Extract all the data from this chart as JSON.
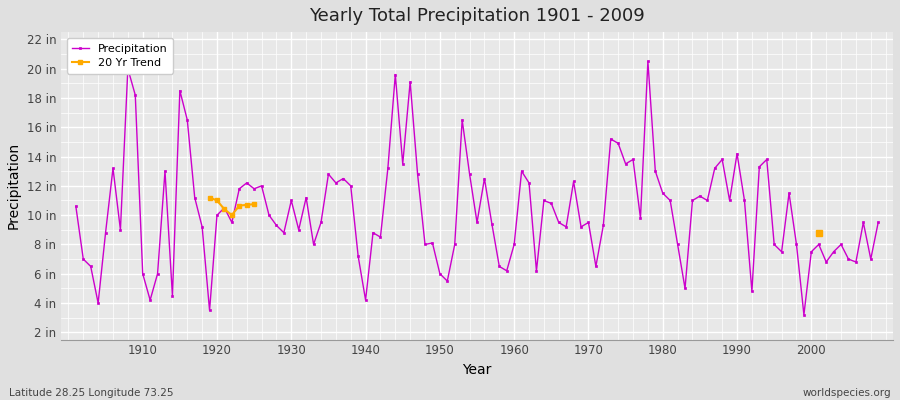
{
  "title": "Yearly Total Precipitation 1901 - 2009",
  "xlabel": "Year",
  "ylabel": "Precipitation",
  "footnote_left": "Latitude 28.25 Longitude 73.25",
  "footnote_right": "worldspecies.org",
  "years": [
    1901,
    1902,
    1903,
    1904,
    1905,
    1906,
    1907,
    1908,
    1909,
    1910,
    1911,
    1912,
    1913,
    1914,
    1915,
    1916,
    1917,
    1918,
    1919,
    1920,
    1921,
    1922,
    1923,
    1924,
    1925,
    1926,
    1927,
    1928,
    1929,
    1930,
    1931,
    1932,
    1933,
    1934,
    1935,
    1936,
    1937,
    1938,
    1939,
    1940,
    1941,
    1942,
    1943,
    1944,
    1945,
    1946,
    1947,
    1948,
    1949,
    1950,
    1951,
    1952,
    1953,
    1954,
    1955,
    1956,
    1957,
    1958,
    1959,
    1960,
    1961,
    1962,
    1963,
    1964,
    1965,
    1966,
    1967,
    1968,
    1969,
    1970,
    1971,
    1972,
    1973,
    1974,
    1975,
    1976,
    1977,
    1978,
    1979,
    1980,
    1981,
    1982,
    1983,
    1984,
    1985,
    1986,
    1987,
    1988,
    1989,
    1990,
    1991,
    1992,
    1993,
    1994,
    1995,
    1996,
    1997,
    1998,
    1999,
    2000,
    2001,
    2002,
    2003,
    2004,
    2005,
    2006,
    2007,
    2008,
    2009
  ],
  "precip": [
    10.6,
    7.0,
    6.5,
    4.0,
    8.8,
    13.2,
    9.0,
    20.0,
    18.2,
    6.0,
    4.2,
    6.0,
    13.0,
    4.5,
    18.5,
    16.5,
    11.2,
    9.2,
    3.5,
    10.0,
    10.5,
    9.5,
    11.8,
    12.2,
    11.8,
    12.0,
    10.0,
    9.3,
    8.8,
    11.0,
    9.0,
    11.2,
    8.0,
    9.5,
    12.8,
    12.2,
    12.5,
    12.0,
    7.2,
    4.2,
    8.8,
    8.5,
    13.2,
    19.6,
    13.5,
    19.1,
    12.8,
    8.0,
    8.1,
    6.0,
    5.5,
    8.0,
    16.5,
    12.8,
    9.5,
    12.5,
    9.4,
    6.5,
    6.2,
    8.0,
    13.0,
    12.2,
    6.2,
    11.0,
    10.8,
    9.5,
    9.2,
    12.3,
    9.2,
    9.5,
    6.5,
    9.3,
    15.2,
    14.9,
    13.5,
    13.8,
    9.8,
    20.5,
    13.0,
    11.5,
    11.0,
    8.0,
    5.0,
    11.0,
    11.3,
    11.0,
    13.2,
    13.8,
    11.0,
    14.2,
    11.0,
    4.8,
    13.3,
    13.8,
    8.0,
    7.5,
    11.5,
    8.0,
    3.2,
    7.5,
    8.0,
    6.8,
    7.5,
    8.0,
    7.0,
    6.8,
    9.5,
    7.0,
    9.5
  ],
  "trend_y1": [
    1919,
    1920,
    1921,
    1922,
    1923,
    1924,
    1925
  ],
  "trend_v1": [
    11.2,
    11.0,
    10.4,
    10.0,
    10.65,
    10.7,
    10.75
  ],
  "trend_y2": [
    2001
  ],
  "trend_v2": [
    8.8
  ],
  "line_color": "#cc00cc",
  "trend_color": "#ffaa00",
  "bg_color": "#e0e0e0",
  "plot_bg_color": "#e8e8e8",
  "ytick_labels": [
    "2 in",
    "4 in",
    "6 in",
    "8 in",
    "10 in",
    "12 in",
    "14 in",
    "16 in",
    "18 in",
    "20 in",
    "22 in"
  ],
  "ytick_values": [
    2,
    4,
    6,
    8,
    10,
    12,
    14,
    16,
    18,
    20,
    22
  ],
  "ylim": [
    1.5,
    22.5
  ],
  "xlim": [
    1899,
    2011
  ]
}
